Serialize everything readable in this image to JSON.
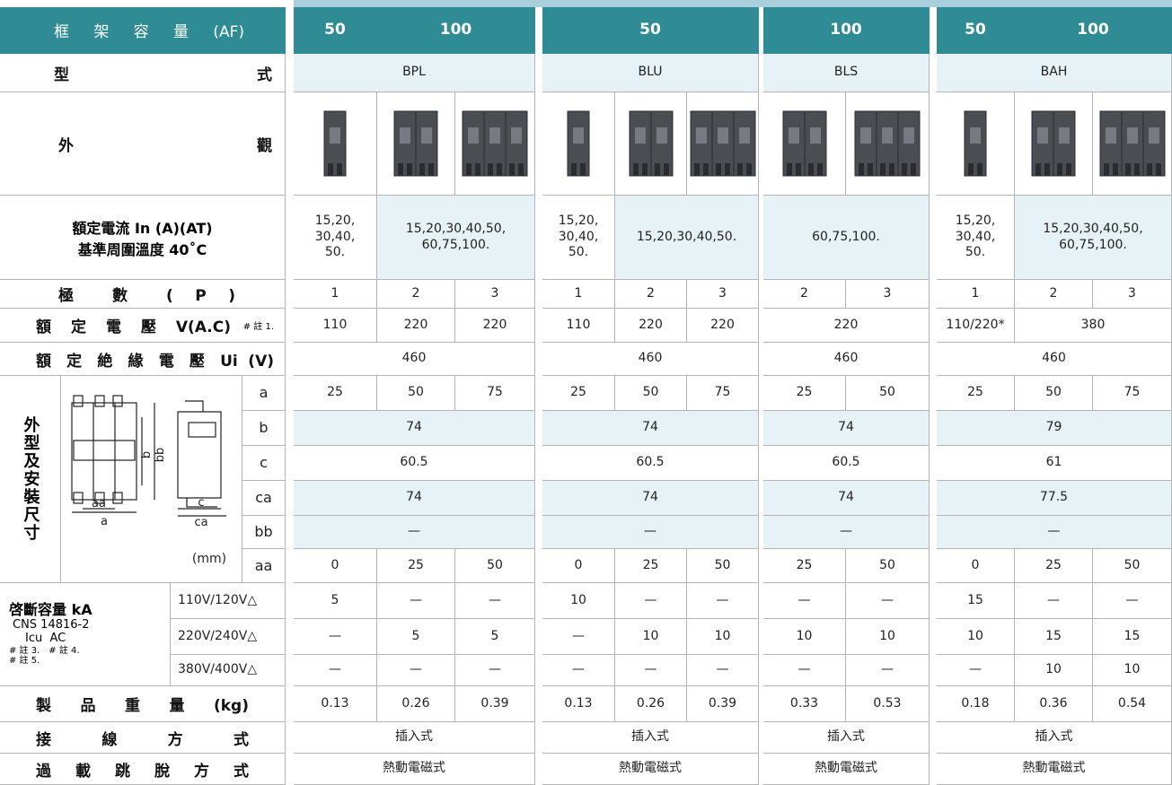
{
  "rows": [
    {
      "label": "框 架 容 量 (AF)",
      "cells": [
        "50",
        "100",
        "50",
        "100",
        "50",
        "100"
      ]
    },
    {
      "label": "型 式",
      "cells": [
        "BPL",
        "BLU",
        "BLS",
        "BAH"
      ]
    },
    {
      "label": "外 觀"
    },
    {
      "label": [
        "額定電流 In (A)(AT)",
        "基準周圍溫度 40˚C"
      ],
      "cells": [
        "15,20,\n30,40,\n50.",
        "15,20,30,40,50,\n60,75,100.",
        "15,20,\n30,40,\n50.",
        "15,20,30,40,50.",
        "60,75,100.",
        "15,20,\n30,40,\n50.",
        "15,20,30,40,50,\n60,75,100."
      ]
    },
    {
      "label": "極 數 ( P )",
      "cells": [
        "1",
        "2",
        "3",
        "1",
        "2",
        "3",
        "2",
        "3",
        "1",
        "2",
        "3"
      ]
    },
    {
      "label": "額 定 電 壓 V(A.C)",
      "note": "# 註 1.",
      "cells": [
        "110",
        "220",
        "220",
        "110",
        "220",
        "220",
        "220",
        "110/220*",
        "380"
      ]
    },
    {
      "label": "額 定 絶 緣 電 壓 Ui (V)",
      "cells": [
        "460",
        "460",
        "460",
        "460"
      ]
    }
  ],
  "dimensions": {
    "title": "外型及安裝尺寸",
    "unit": "(mm)",
    "diagram_labels": [
      "aa",
      "a",
      "b",
      "bb",
      "c",
      "ca"
    ],
    "rows": [
      {
        "label": "a",
        "cells": [
          "25",
          "50",
          "75",
          "25",
          "50",
          "75",
          "25",
          "50",
          "25",
          "50",
          "75"
        ]
      },
      {
        "label": "b",
        "cells": [
          "74",
          "74",
          "74",
          "79"
        ]
      },
      {
        "label": "c",
        "cells": [
          "60.5",
          "60.5",
          "60.5",
          "61"
        ]
      },
      {
        "label": "ca",
        "cells": [
          "74",
          "74",
          "74",
          "77.5"
        ]
      },
      {
        "label": "bb",
        "cells": [
          "—",
          "—",
          "—",
          "—"
        ]
      },
      {
        "label": "aa",
        "cells": [
          "0",
          "25",
          "50",
          "0",
          "25",
          "50",
          "25",
          "50",
          "0",
          "25",
          "50"
        ]
      }
    ]
  },
  "breaking": {
    "title": "啓斷容量 kA",
    "standard": "CNS 14816-2",
    "icu": "Icu  AC",
    "notes": [
      "# 註 3.",
      "# 註 4.",
      "# 註 5."
    ],
    "rows": [
      {
        "label": "110V/120V△",
        "cells": [
          "5",
          "—",
          "—",
          "10",
          "—",
          "—",
          "—",
          "—",
          "15",
          "—",
          "—"
        ]
      },
      {
        "label": "220V/240V△",
        "cells": [
          "—",
          "5",
          "5",
          "—",
          "10",
          "10",
          "10",
          "10",
          "10",
          "15",
          "15"
        ]
      },
      {
        "label": "380V/400V△",
        "cells": [
          "—",
          "—",
          "—",
          "—",
          "—",
          "—",
          "—",
          "—",
          "—",
          "10",
          "10"
        ]
      }
    ]
  },
  "bottom_rows": [
    {
      "label": "製 品 重 量 (kg)",
      "cells": [
        "0.13",
        "0.26",
        "0.39",
        "0.13",
        "0.26",
        "0.39",
        "0.33",
        "0.53",
        "0.18",
        "0.36",
        "0.54"
      ]
    },
    {
      "label": "接 線 方 式",
      "cells": [
        "插入式",
        "插入式",
        "插入式",
        "插入式"
      ]
    },
    {
      "label": "過 載 跳 脫 方 式",
      "cells": [
        "熱動電磁式",
        "熱動電磁式",
        "熱動電磁式",
        "熱動電磁式"
      ]
    }
  ]
}
